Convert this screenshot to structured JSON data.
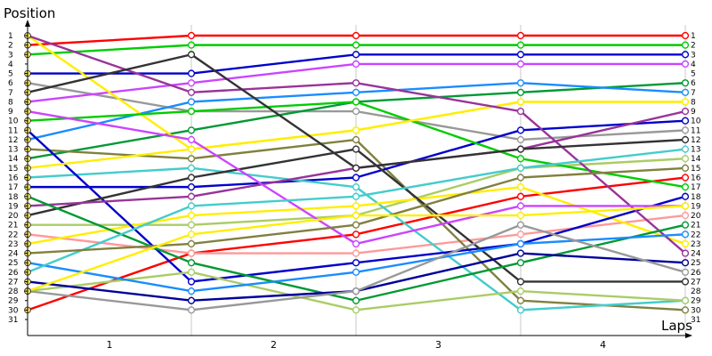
{
  "chart_data": {
    "type": "line",
    "ylabel": "Position",
    "xlabel": "Laps",
    "x": [
      0,
      1,
      2,
      3,
      4
    ],
    "x_tick_labels": [
      "1",
      "2",
      "3",
      "4"
    ],
    "y_tick_labels": [
      "1",
      "2",
      "3",
      "4",
      "5",
      "6",
      "7",
      "8",
      "9",
      "10",
      "11",
      "12",
      "13",
      "14",
      "15",
      "16",
      "17",
      "18",
      "19",
      "20",
      "21",
      "22",
      "23",
      "24",
      "25",
      "26",
      "27",
      "28",
      "29",
      "30",
      "31"
    ],
    "ylim": [
      1,
      31
    ],
    "y_inverted": true,
    "legend": "none",
    "series": [
      {
        "color": "#ff0000",
        "values": [
          30,
          24,
          22,
          18,
          16
        ]
      },
      {
        "color": "#999999",
        "values": [
          6,
          9,
          9,
          12,
          11
        ]
      },
      {
        "color": "#009933",
        "values": [
          14,
          11,
          8,
          7,
          6
        ]
      },
      {
        "color": "#0000cc",
        "values": [
          5,
          5,
          3,
          3,
          3
        ]
      },
      {
        "color": "#ff9999",
        "values": [
          22,
          24,
          24,
          22,
          20
        ]
      },
      {
        "color": "#00cc00",
        "values": [
          3,
          2,
          2,
          2,
          2
        ]
      },
      {
        "color": "#aacc66",
        "values": [
          21,
          21,
          20,
          15,
          14
        ]
      },
      {
        "color": "#808040",
        "values": [
          13,
          14,
          12,
          29,
          30
        ]
      },
      {
        "color": "#0000cc",
        "values": [
          17,
          17,
          16,
          11,
          10
        ]
      },
      {
        "color": "#ff0000",
        "values": [
          2,
          1,
          1,
          1,
          1
        ]
      },
      {
        "color": "#cc44ff",
        "values": [
          8,
          6,
          4,
          4,
          4
        ]
      },
      {
        "color": "#1a8cff",
        "values": [
          12,
          8,
          7,
          6,
          7
        ]
      },
      {
        "color": "#44cccc",
        "values": [
          16,
          15,
          17,
          30,
          29
        ]
      },
      {
        "color": "#ffee00",
        "values": [
          1,
          13,
          11,
          8,
          8
        ]
      },
      {
        "color": "#00cc00",
        "values": [
          10,
          9,
          8,
          14,
          17
        ]
      },
      {
        "color": "#ffee00",
        "values": [
          23,
          20,
          19,
          17,
          23
        ]
      },
      {
        "color": "#0000cc",
        "values": [
          11,
          27,
          25,
          23,
          18
        ]
      },
      {
        "color": "#ffee00",
        "values": [
          15,
          13,
          11,
          8,
          8
        ]
      },
      {
        "color": "#993399",
        "values": [
          1,
          7,
          6,
          9,
          24
        ]
      },
      {
        "color": "#aacc66",
        "values": [
          28,
          26,
          30,
          28,
          29
        ]
      },
      {
        "color": "#333333",
        "values": [
          20,
          16,
          13,
          27,
          27
        ]
      },
      {
        "color": "#993399",
        "values": [
          19,
          18,
          15,
          13,
          9
        ]
      },
      {
        "color": "#009933",
        "values": [
          18,
          25,
          29,
          25,
          21
        ]
      },
      {
        "color": "#1a8cff",
        "values": [
          25,
          28,
          26,
          23,
          22
        ]
      },
      {
        "color": "#cc44ff",
        "values": [
          9,
          12,
          23,
          19,
          19
        ]
      },
      {
        "color": "#000099",
        "values": [
          27,
          29,
          28,
          24,
          25
        ]
      },
      {
        "color": "#44cccc",
        "values": [
          26,
          19,
          18,
          15,
          13
        ]
      },
      {
        "color": "#333333",
        "values": [
          7,
          3,
          15,
          13,
          12
        ]
      },
      {
        "color": "#999999",
        "values": [
          28,
          30,
          28,
          21,
          26
        ]
      },
      {
        "color": "#808040",
        "values": [
          24,
          23,
          21,
          16,
          15
        ]
      },
      {
        "color": "#ffee00",
        "values": [
          28,
          22,
          20,
          20,
          19
        ]
      }
    ]
  }
}
